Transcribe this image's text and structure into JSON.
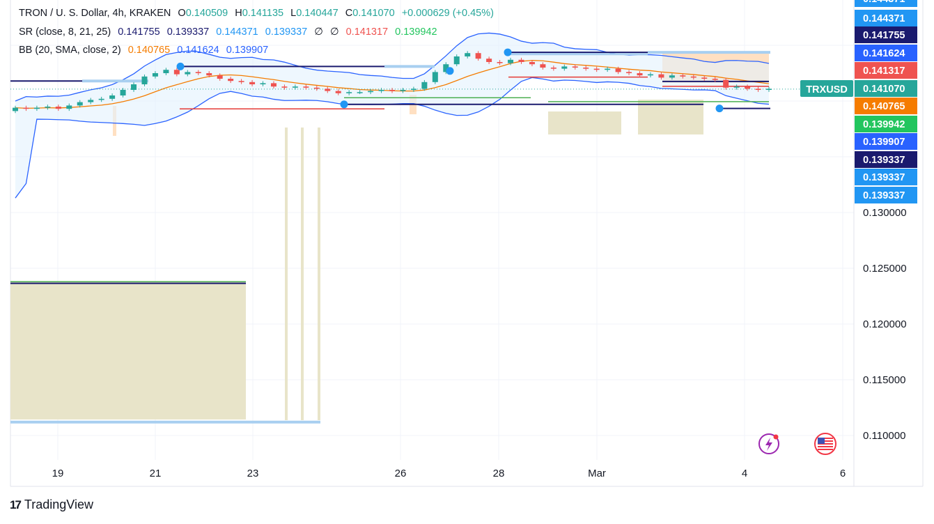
{
  "legend": {
    "symbol": "TRON / U. S. Dollar, 4h, KRAKEN",
    "o_label": "O",
    "o_value": "0.140509",
    "h_label": "H",
    "h_value": "0.141135",
    "l_label": "L",
    "l_value": "0.140447",
    "c_label": "C",
    "c_value": "0.141070",
    "change": "+0.000629 (+0.45%)",
    "sr_label": "SR (close, 8, 21, 25)",
    "sr_values": [
      "0.141755",
      "0.139337",
      "0.144371",
      "0.139337",
      "∅",
      "∅",
      "0.141317",
      "0.139942"
    ],
    "bb_label": "BB (20, SMA, close, 2)",
    "bb_values": [
      "0.140765",
      "0.141624",
      "0.139907"
    ]
  },
  "colors": {
    "up": "#26a69a",
    "down": "#ef5350",
    "bb_basis": "#f57c00",
    "bb_band": "#2962ff",
    "bb_fill": "#e3f2fd",
    "sr_dark": "#1a1a6e",
    "sr_light": "#a8cff0",
    "zone_olive": "#e8e4c9",
    "zone_orange": "#ffe0c2",
    "green_line": "#4caf50",
    "red_line": "#e53935",
    "dot": "#2196f3"
  },
  "price_axis": {
    "ticks": [
      "0.130000",
      "0.125000",
      "0.120000",
      "0.115000",
      "0.110000"
    ],
    "badges": [
      {
        "text": "0.144371",
        "color": "#2196f3"
      },
      {
        "text": "0.141755",
        "color": "#1a1a6e"
      },
      {
        "text": "0.141624",
        "color": "#2962ff"
      },
      {
        "text": "0.141317",
        "color": "#ef5350"
      },
      {
        "text": "0.141070",
        "color": "#26a69a"
      },
      {
        "text": "0.140765",
        "color": "#f57c00"
      },
      {
        "text": "0.139942",
        "color": "#22c55e"
      },
      {
        "text": "0.139907",
        "color": "#2962ff"
      },
      {
        "text": "0.139337",
        "color": "#1a1a6e"
      },
      {
        "text": "0.139337",
        "color": "#2196f3"
      },
      {
        "text": "0.139337",
        "color": "#2196f3"
      }
    ],
    "symbol_tag": "TRXUSD"
  },
  "time_axis": {
    "ticks": [
      "19",
      "21",
      "23",
      "26",
      "28",
      "Mar",
      "4",
      "6"
    ]
  },
  "brand": {
    "name": "TradingView"
  },
  "chart_data": {
    "type": "candlestick",
    "title": "TRON / U. S. Dollar, 4h, KRAKEN",
    "ylim": [
      0.1075,
      0.1465
    ],
    "x": [
      "19",
      "21",
      "23",
      "26",
      "28",
      "Mar",
      "4",
      "6"
    ],
    "close_values": [
      0.1394,
      0.1393,
      0.1394,
      0.1395,
      0.1393,
      0.1396,
      0.1399,
      0.1401,
      0.1402,
      0.1405,
      0.141,
      0.1415,
      0.1422,
      0.1425,
      0.1428,
      0.1424,
      0.1426,
      0.1425,
      0.1423,
      0.142,
      0.1418,
      0.1417,
      0.1415,
      0.1416,
      0.1413,
      0.1412,
      0.1413,
      0.1412,
      0.1411,
      0.1409,
      0.1407,
      0.1408,
      0.1408,
      0.1409,
      0.141,
      0.1409,
      0.141,
      0.1411,
      0.1417,
      0.1426,
      0.1433,
      0.144,
      0.1443,
      0.1438,
      0.1435,
      0.1434,
      0.1437,
      0.1435,
      0.1433,
      0.143,
      0.1429,
      0.1431,
      0.143,
      0.1429,
      0.1428,
      0.1429,
      0.1426,
      0.1425,
      0.1423,
      0.1424,
      0.1421,
      0.1423,
      0.1422,
      0.1421,
      0.142,
      0.1419,
      0.1412,
      0.1413,
      0.1411,
      0.141,
      0.1411
    ],
    "bb_basis": 0.140765,
    "bb_upper": 0.141624,
    "bb_lower": 0.139907,
    "last_close": 0.14107,
    "sr_levels": [
      0.144371,
      0.141755,
      0.141317,
      0.139942,
      0.139337,
      0.1238,
      0.1112
    ]
  }
}
